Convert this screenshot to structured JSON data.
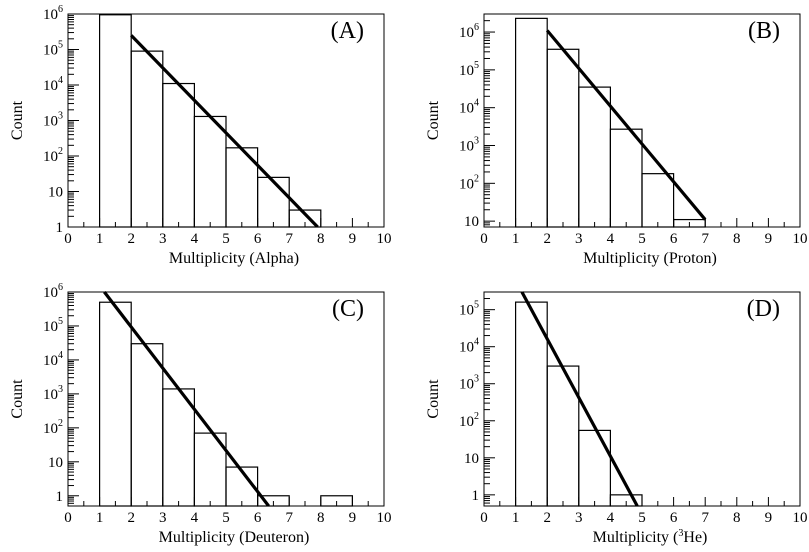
{
  "chart_data": [
    {
      "type": "bar",
      "panel_label": "(A)",
      "xlabel": "Multiplicity (Alpha)",
      "xlabel_parts": {
        "pre": "Multiplicity (Alpha)",
        "sup": "",
        "post": ""
      },
      "ylabel": "Count",
      "xlim": [
        0,
        10
      ],
      "ylim": [
        1,
        1000000
      ],
      "yscale": "log",
      "x_ticks": [
        "0",
        "1",
        "2",
        "3",
        "4",
        "5",
        "6",
        "7",
        "8",
        "9",
        "10"
      ],
      "y_ticks": [
        {
          "value": 1,
          "base": "1",
          "exp": ""
        },
        {
          "value": 10,
          "base": "10",
          "exp": ""
        },
        {
          "value": 100,
          "base": "10",
          "exp": "2"
        },
        {
          "value": 1000,
          "base": "10",
          "exp": "3"
        },
        {
          "value": 10000,
          "base": "10",
          "exp": "4"
        },
        {
          "value": 100000,
          "base": "10",
          "exp": "5"
        },
        {
          "value": 1000000,
          "base": "10",
          "exp": "6"
        }
      ],
      "bins": [
        {
          "x0": 1,
          "x1": 2,
          "count": 950000
        },
        {
          "x0": 2,
          "x1": 3,
          "count": 90000
        },
        {
          "x0": 3,
          "x1": 4,
          "count": 11000
        },
        {
          "x0": 4,
          "x1": 5,
          "count": 1300
        },
        {
          "x0": 5,
          "x1": 6,
          "count": 170
        },
        {
          "x0": 6,
          "x1": 7,
          "count": 25
        },
        {
          "x0": 7,
          "x1": 8,
          "count": 3
        }
      ],
      "fit": {
        "x": [
          2.0,
          7.9
        ],
        "y": [
          250000,
          1
        ]
      }
    },
    {
      "type": "bar",
      "panel_label": "(B)",
      "xlabel": "Multiplicity (Proton)",
      "xlabel_parts": {
        "pre": "Multiplicity (Proton)",
        "sup": "",
        "post": ""
      },
      "ylabel": "Count",
      "xlim": [
        0,
        10
      ],
      "ylim": [
        7,
        3000000
      ],
      "yscale": "log",
      "x_ticks": [
        "0",
        "1",
        "2",
        "3",
        "4",
        "5",
        "6",
        "7",
        "8",
        "9",
        "10"
      ],
      "y_ticks": [
        {
          "value": 10,
          "base": "10",
          "exp": ""
        },
        {
          "value": 100,
          "base": "10",
          "exp": "2"
        },
        {
          "value": 1000,
          "base": "10",
          "exp": "3"
        },
        {
          "value": 10000,
          "base": "10",
          "exp": "4"
        },
        {
          "value": 100000,
          "base": "10",
          "exp": "5"
        },
        {
          "value": 1000000,
          "base": "10",
          "exp": "6"
        }
      ],
      "bins": [
        {
          "x0": 1,
          "x1": 2,
          "count": 2300000
        },
        {
          "x0": 2,
          "x1": 3,
          "count": 350000
        },
        {
          "x0": 3,
          "x1": 4,
          "count": 35000
        },
        {
          "x0": 4,
          "x1": 5,
          "count": 2700
        },
        {
          "x0": 5,
          "x1": 6,
          "count": 180
        },
        {
          "x0": 6,
          "x1": 7,
          "count": 11
        }
      ],
      "fit": {
        "x": [
          2.0,
          7.0
        ],
        "y": [
          1100000,
          11
        ]
      }
    },
    {
      "type": "bar",
      "panel_label": "(C)",
      "xlabel": "Multiplicity (Deuteron)",
      "xlabel_parts": {
        "pre": "Multiplicity (Deuteron)",
        "sup": "",
        "post": ""
      },
      "ylabel": "Count",
      "xlim": [
        0,
        10
      ],
      "ylim": [
        0.5,
        1000000
      ],
      "yscale": "log",
      "x_ticks": [
        "0",
        "1",
        "2",
        "3",
        "4",
        "5",
        "6",
        "7",
        "8",
        "9",
        "10"
      ],
      "y_ticks": [
        {
          "value": 1,
          "base": "1",
          "exp": ""
        },
        {
          "value": 10,
          "base": "10",
          "exp": ""
        },
        {
          "value": 100,
          "base": "10",
          "exp": "2"
        },
        {
          "value": 1000,
          "base": "10",
          "exp": "3"
        },
        {
          "value": 10000,
          "base": "10",
          "exp": "4"
        },
        {
          "value": 100000,
          "base": "10",
          "exp": "5"
        },
        {
          "value": 1000000,
          "base": "10",
          "exp": "6"
        }
      ],
      "bins": [
        {
          "x0": 1,
          "x1": 2,
          "count": 500000
        },
        {
          "x0": 2,
          "x1": 3,
          "count": 30000
        },
        {
          "x0": 3,
          "x1": 4,
          "count": 1400
        },
        {
          "x0": 4,
          "x1": 5,
          "count": 70
        },
        {
          "x0": 5,
          "x1": 6,
          "count": 7
        },
        {
          "x0": 6,
          "x1": 7,
          "count": 1
        },
        {
          "x0": 8,
          "x1": 9,
          "count": 1
        }
      ],
      "fit": {
        "x": [
          1.15,
          6.35
        ],
        "y": [
          1000000,
          0.5
        ]
      }
    },
    {
      "type": "bar",
      "panel_label": "(D)",
      "xlabel": "Multiplicity (3He)",
      "xlabel_parts": {
        "pre": "Multiplicity (",
        "sup": "3",
        "post": "He)"
      },
      "ylabel": "Count",
      "xlim": [
        0,
        10
      ],
      "ylim": [
        0.5,
        300000
      ],
      "yscale": "log",
      "x_ticks": [
        "0",
        "1",
        "2",
        "3",
        "4",
        "5",
        "6",
        "7",
        "8",
        "9",
        "10"
      ],
      "y_ticks": [
        {
          "value": 1,
          "base": "1",
          "exp": ""
        },
        {
          "value": 10,
          "base": "10",
          "exp": ""
        },
        {
          "value": 100,
          "base": "10",
          "exp": "2"
        },
        {
          "value": 1000,
          "base": "10",
          "exp": "3"
        },
        {
          "value": 10000,
          "base": "10",
          "exp": "4"
        },
        {
          "value": 100000,
          "base": "10",
          "exp": "5"
        }
      ],
      "bins": [
        {
          "x0": 1,
          "x1": 2,
          "count": 160000
        },
        {
          "x0": 2,
          "x1": 3,
          "count": 3000
        },
        {
          "x0": 3,
          "x1": 4,
          "count": 55
        },
        {
          "x0": 4,
          "x1": 5,
          "count": 1
        }
      ],
      "fit": {
        "x": [
          1.2,
          4.85
        ],
        "y": [
          300000,
          0.5
        ]
      }
    }
  ]
}
